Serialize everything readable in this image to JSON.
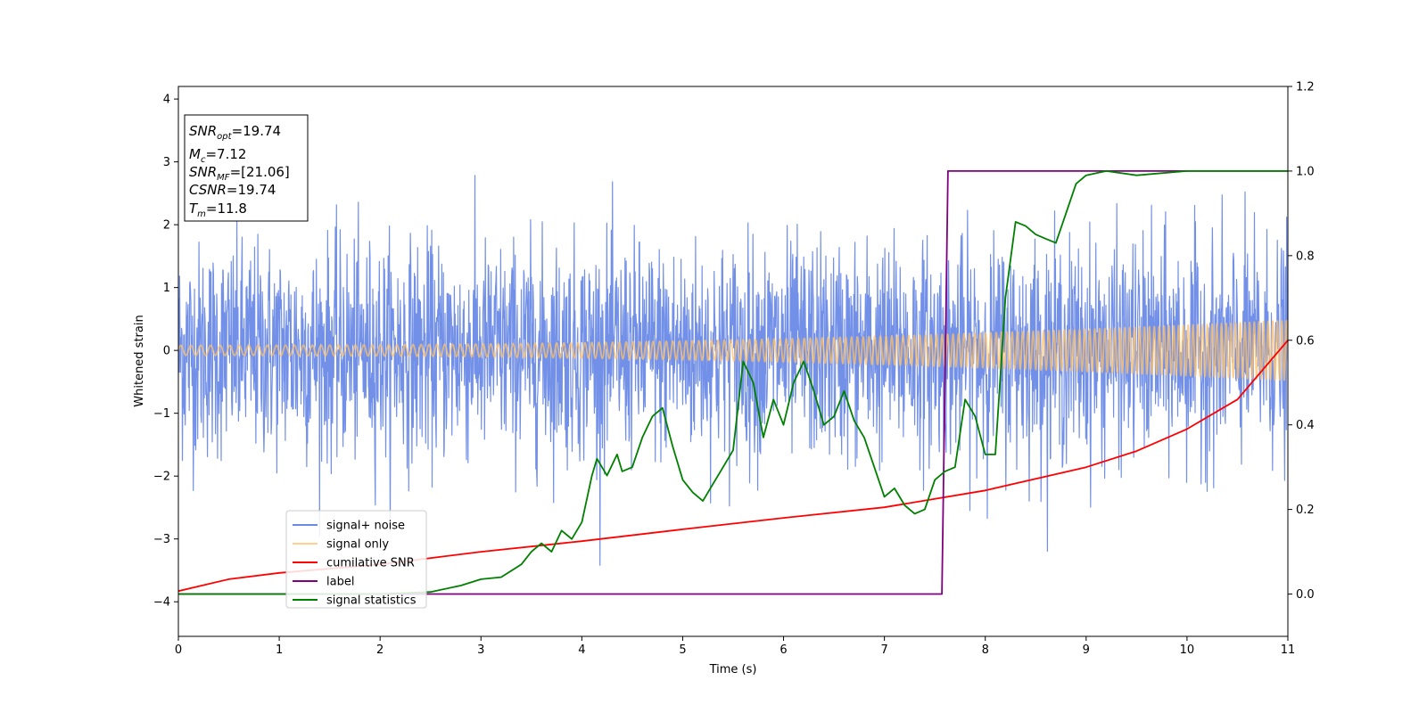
{
  "chart_data": {
    "type": "line",
    "xlabel": "Time (s)",
    "ylabel": "Whitened strain",
    "xlim": [
      0,
      11
    ],
    "ylim": [
      -4.55,
      4.2
    ],
    "y2lim": [
      -0.1,
      1.2
    ],
    "x_ticks": [
      "0",
      "1",
      "2",
      "3",
      "4",
      "5",
      "6",
      "7",
      "8",
      "9",
      "10",
      "11"
    ],
    "y_ticks": [
      "−4",
      "−3",
      "−2",
      "−1",
      "0",
      "1",
      "2",
      "3",
      "4"
    ],
    "y2_ticks": [
      "0.0",
      "0.2",
      "0.4",
      "0.6",
      "0.8",
      "1.0",
      "1.2"
    ],
    "grid": false,
    "legend_position": "lower-left",
    "annotation_box": {
      "lines": [
        {
          "symbol": "SNR",
          "sub": "opt",
          "value": "=19.74"
        },
        {
          "symbol": "M",
          "sub": "c",
          "value": "=7.12"
        },
        {
          "symbol": "SNR",
          "sub": "MF",
          "value": "=[21.06]"
        },
        {
          "symbol": "CSNR",
          "sub": "",
          "value": "=19.74"
        },
        {
          "symbol": "T",
          "sub": "m",
          "value": "=11.8"
        }
      ]
    },
    "series": [
      {
        "name": "signal+ noise",
        "color": "#6a8ae6",
        "axis": "left",
        "kind": "noise",
        "amplitude_sigma": 0.85,
        "sample_step": 0.004
      },
      {
        "name": "signal only",
        "color": "#ffc26b",
        "axis": "left",
        "kind": "chirp",
        "amplitude_start": 0.08,
        "amplitude_end": 0.48
      },
      {
        "name": "cumilative SNR",
        "color": "#ff0000",
        "axis": "right",
        "x": [
          0,
          0.5,
          1,
          2,
          3,
          4,
          5,
          6,
          7,
          8,
          9,
          9.5,
          10,
          10.5,
          11
        ],
        "y": [
          0.007,
          0.035,
          0.05,
          0.07,
          0.1,
          0.125,
          0.153,
          0.18,
          0.205,
          0.245,
          0.3,
          0.338,
          0.39,
          0.46,
          0.6
        ]
      },
      {
        "name": "label",
        "color": "#800080",
        "axis": "right",
        "x": [
          0,
          7.57,
          7.63,
          11
        ],
        "y": [
          0,
          0,
          1,
          1
        ]
      },
      {
        "name": "signal statistics",
        "color": "#008000",
        "axis": "right",
        "x": [
          0,
          2.0,
          2.5,
          2.8,
          3.0,
          3.2,
          3.4,
          3.5,
          3.6,
          3.7,
          3.8,
          3.9,
          4.0,
          4.1,
          4.15,
          4.25,
          4.35,
          4.4,
          4.5,
          4.6,
          4.7,
          4.8,
          4.9,
          5.0,
          5.1,
          5.2,
          5.3,
          5.4,
          5.5,
          5.6,
          5.7,
          5.8,
          5.9,
          6.0,
          6.1,
          6.2,
          6.3,
          6.4,
          6.5,
          6.6,
          6.7,
          6.8,
          6.9,
          7.0,
          7.1,
          7.2,
          7.3,
          7.4,
          7.5,
          7.6,
          7.7,
          7.8,
          7.9,
          8.0,
          8.1,
          8.2,
          8.3,
          8.4,
          8.5,
          8.6,
          8.7,
          8.8,
          8.9,
          9.0,
          9.2,
          9.5,
          10.0,
          11.0
        ],
        "y": [
          0.0,
          0.0,
          0.005,
          0.02,
          0.035,
          0.04,
          0.07,
          0.1,
          0.12,
          0.1,
          0.15,
          0.13,
          0.17,
          0.28,
          0.32,
          0.28,
          0.33,
          0.29,
          0.3,
          0.37,
          0.42,
          0.44,
          0.35,
          0.27,
          0.24,
          0.22,
          0.26,
          0.3,
          0.34,
          0.55,
          0.5,
          0.37,
          0.46,
          0.4,
          0.5,
          0.55,
          0.48,
          0.4,
          0.42,
          0.48,
          0.41,
          0.37,
          0.3,
          0.23,
          0.25,
          0.21,
          0.19,
          0.2,
          0.27,
          0.29,
          0.3,
          0.46,
          0.42,
          0.33,
          0.33,
          0.7,
          0.88,
          0.87,
          0.85,
          0.84,
          0.83,
          0.9,
          0.97,
          0.99,
          1.0,
          0.99,
          1.0,
          1.0
        ]
      }
    ]
  }
}
